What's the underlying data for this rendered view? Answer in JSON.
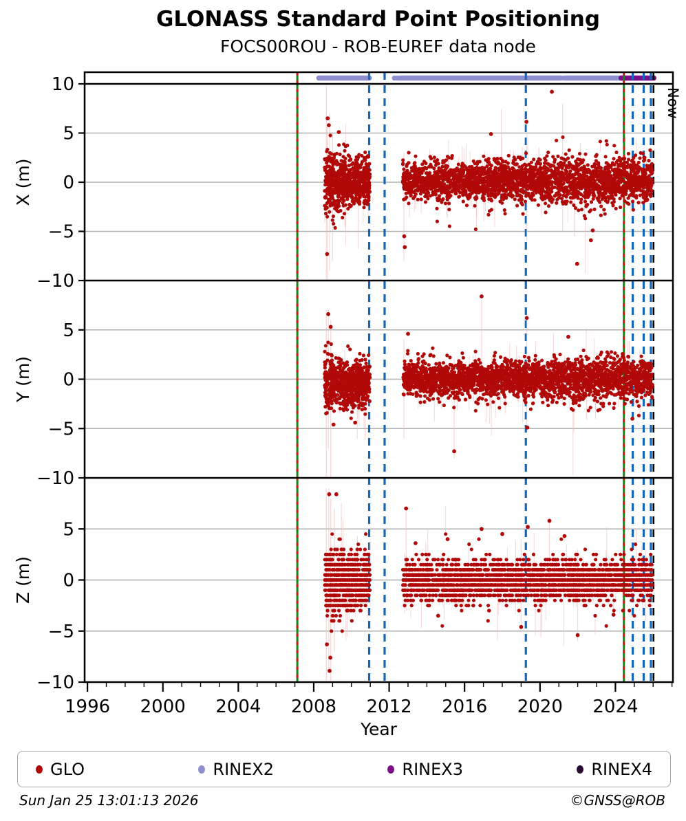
{
  "chart_data": {
    "type": "scatter",
    "title": "GLONASS Standard Point Positioning",
    "subtitle": "FOCS00ROU - ROB-EUREF data node",
    "xlabel": "Year",
    "now_label": "Now",
    "xlim": [
      1995.85,
      2027.05
    ],
    "xticks_major": [
      1996,
      2000,
      2004,
      2008,
      2012,
      2016,
      2020,
      2024
    ],
    "xtick_minor_range": [
      1996,
      2027
    ],
    "ylim": [
      -10,
      10
    ],
    "grid_values": [
      5,
      0,
      -5
    ],
    "grid_on": true,
    "legend_position": "bottom",
    "colors": {
      "glo": "#b10808",
      "stem": "#f0bcbc",
      "rinex2": "#8f8fce",
      "rinex3": "#7c0e87",
      "rinex4": "#2b0a33",
      "blue_event": "#1467b8",
      "green_event": "#0a8c0a",
      "green_event_dash": "#d01818",
      "now_line": "#000000",
      "grid": "#b0b0b0"
    },
    "event_lines": [
      {
        "year": 2007.13,
        "kind": "glonass"
      },
      {
        "year": 2024.45,
        "kind": "glonass"
      },
      {
        "year": 2010.94,
        "kind": "blue"
      },
      {
        "year": 2011.76,
        "kind": "blue"
      },
      {
        "year": 2019.25,
        "kind": "blue"
      },
      {
        "year": 2024.92,
        "kind": "blue"
      },
      {
        "year": 2025.5,
        "kind": "blue"
      },
      {
        "year": 2025.88,
        "kind": "blue"
      },
      {
        "year": 2026.02,
        "kind": "now"
      }
    ],
    "rinex2": {
      "segments": [
        [
          2008.27,
          2010.95
        ],
        [
          2012.55,
          2021.13
        ],
        [
          2021.27,
          2024.38
        ]
      ],
      "dots": [
        2012.28,
        2012.42
      ]
    },
    "rinex3": {
      "segments": [
        [
          2024.3,
          2026.04
        ]
      ],
      "dots": []
    },
    "rinex4": {
      "segments": [],
      "dots": []
    },
    "subplots": [
      {
        "name": "X",
        "ylabel": "X (m)",
        "yticks_labeled": [
          10,
          5,
          0,
          -5,
          -10
        ],
        "clusters": [
          {
            "seed": 11,
            "n": 700,
            "x_range": [
              2008.58,
              2010.98
            ],
            "mean": 0,
            "std_points": [
              [
                0,
                1.7
              ],
              [
                0.25,
                1.3
              ],
              [
                1,
                1.05
              ]
            ],
            "clamp": [
              -4.8,
              5.3
            ],
            "wide_fraction": 0.02,
            "wide_scale": 1.8,
            "wide_clamp": [
              -5.5,
              5.8
            ],
            "stem_fraction": 0.05
          },
          {
            "seed": 12,
            "n": 2600,
            "x_range": [
              2012.72,
              2025.97
            ],
            "mean": 0.15,
            "std_points": [
              [
                0,
                0.95
              ],
              [
                0.55,
                1.05
              ],
              [
                0.78,
                1.35
              ],
              [
                1,
                1.0
              ]
            ],
            "clamp": [
              -4.3,
              4.6
            ],
            "wide_fraction": 0.02,
            "wide_scale": 1.8,
            "wide_clamp": [
              -4.8,
              4.8
            ],
            "stem_fraction": 0.04
          }
        ],
        "outliers": [
          [
            2008.74,
            6.5
          ],
          [
            2008.8,
            5.8
          ],
          [
            2008.71,
            -7.3
          ],
          [
            2009.33,
            5.1
          ],
          [
            2012.8,
            -5.5
          ],
          [
            2012.83,
            -6.6
          ],
          [
            2019.28,
            6.15
          ],
          [
            2020.63,
            9.2
          ],
          [
            2021.97,
            -8.3
          ],
          [
            2017.4,
            4.9
          ],
          [
            2022.7,
            -5.9
          ],
          [
            2022.8,
            -4.9
          ]
        ],
        "tall_stems": [
          [
            2008.67,
            -10,
            10
          ],
          [
            2008.73,
            -10,
            6
          ],
          [
            2008.85,
            -9,
            7
          ],
          [
            2009.0,
            -8,
            5
          ],
          [
            2012.78,
            -8,
            3
          ],
          [
            2019.3,
            -6,
            6.5
          ],
          [
            2021.2,
            -5,
            8
          ],
          [
            2024.4,
            -4,
            4
          ]
        ]
      },
      {
        "name": "Y",
        "ylabel": "Y (m)",
        "yticks_labeled": [
          5,
          0,
          -5,
          -10
        ],
        "clusters": [
          {
            "seed": 21,
            "n": 700,
            "x_range": [
              2008.58,
              2010.98
            ],
            "mean": -0.3,
            "std_points": [
              [
                0,
                1.5
              ],
              [
                0.3,
                1.2
              ],
              [
                1,
                1.0
              ]
            ],
            "clamp": [
              -4.7,
              5.0
            ],
            "wide_fraction": 0.02,
            "wide_scale": 1.8,
            "wide_clamp": [
              -5.2,
              5.4
            ],
            "stem_fraction": 0.05
          },
          {
            "seed": 22,
            "n": 2600,
            "x_range": [
              2012.72,
              2025.97
            ],
            "mean": 0,
            "std_points": [
              [
                0,
                0.85
              ],
              [
                0.55,
                0.9
              ],
              [
                0.8,
                1.15
              ],
              [
                1,
                0.95
              ]
            ],
            "clamp": [
              -3.4,
              4.5
            ],
            "wide_fraction": 0.02,
            "wide_scale": 1.8,
            "wide_clamp": [
              -4.5,
              4.5
            ],
            "stem_fraction": 0.04
          }
        ],
        "outliers": [
          [
            2008.77,
            6.6
          ],
          [
            2008.9,
            5.3
          ],
          [
            2009.05,
            -4.6
          ],
          [
            2010.2,
            -4.4
          ],
          [
            2016.9,
            8.4
          ],
          [
            2015.45,
            -7.3
          ],
          [
            2019.3,
            6.2
          ],
          [
            2019.33,
            -4.9
          ],
          [
            2013.0,
            4.6
          ],
          [
            2021.5,
            4.3
          ],
          [
            2024.9,
            -4.0
          ]
        ],
        "tall_stems": [
          [
            2008.67,
            -10,
            7
          ],
          [
            2008.78,
            -7,
            7
          ],
          [
            2008.9,
            -10,
            6
          ],
          [
            2012.78,
            -6,
            4
          ],
          [
            2015.45,
            -8,
            2
          ],
          [
            2016.9,
            -2,
            8.6
          ],
          [
            2019.3,
            -5,
            6.5
          ],
          [
            2025.3,
            -4,
            3
          ]
        ]
      },
      {
        "name": "Z",
        "ylabel": "Z (m)",
        "yticks_labeled": [
          5,
          0,
          -5,
          -10
        ],
        "clusters": [
          {
            "seed": 31,
            "n": 700,
            "x_range": [
              2008.58,
              2010.98
            ],
            "mean": 0,
            "std_points": [
              [
                0,
                2.0
              ],
              [
                0.3,
                1.5
              ],
              [
                1,
                1.1
              ]
            ],
            "clamp": [
              -5.2,
              6.2
            ],
            "wide_fraction": 0.03,
            "wide_scale": 1.6,
            "wide_clamp": [
              -6.0,
              6.2
            ],
            "quantum": 0.5,
            "stem_fraction": 0.05
          },
          {
            "seed": 32,
            "n": 2600,
            "x_range": [
              2012.72,
              2025.97
            ],
            "mean": 0,
            "std_points": [
              [
                0,
                0.9
              ],
              [
                1,
                0.95
              ]
            ],
            "clamp": [
              -2.6,
              2.6
            ],
            "wide_fraction": 0.05,
            "wide_scale": 2.0,
            "wide_clamp": [
              -4.6,
              4.6
            ],
            "quantum": 0.5,
            "stem_fraction": 0.04
          }
        ],
        "outliers": [
          [
            2008.82,
            8.4
          ],
          [
            2009.2,
            8.4
          ],
          [
            2008.88,
            -7.6
          ],
          [
            2008.84,
            -8.9
          ],
          [
            2008.7,
            -6.3
          ],
          [
            2012.9,
            7.0
          ],
          [
            2015.1,
            4.0
          ],
          [
            2016.9,
            5.0
          ],
          [
            2018.0,
            4.5
          ],
          [
            2019.35,
            5.2
          ],
          [
            2020.5,
            5.8
          ],
          [
            2021.3,
            4.3
          ],
          [
            2022.0,
            -5.4
          ],
          [
            2019.0,
            -4.6
          ],
          [
            2023.9,
            -3.4
          ],
          [
            2013.4,
            3.6
          ],
          [
            2014.6,
            -3.5
          ]
        ],
        "tall_stems": [
          [
            2008.67,
            -10,
            9
          ],
          [
            2008.8,
            -9,
            9
          ],
          [
            2008.9,
            -10,
            8
          ],
          [
            2009.1,
            -7,
            7
          ],
          [
            2012.9,
            -3,
            7.2
          ],
          [
            2019.0,
            -5,
            4
          ],
          [
            2020.5,
            -2,
            6
          ],
          [
            2022.0,
            -6,
            3
          ],
          [
            2025.6,
            -4,
            3
          ]
        ]
      }
    ]
  },
  "legend": {
    "items": [
      {
        "label": "GLO",
        "color": "#b10808"
      },
      {
        "label": "RINEX2",
        "color": "#8f8fce"
      },
      {
        "label": "RINEX3",
        "color": "#7c0e87"
      },
      {
        "label": "RINEX4",
        "color": "#2b0a33"
      }
    ]
  },
  "footer": {
    "generated_at": "Sun Jan 25 13:01:13 2026",
    "credit": "©GNSS@ROB"
  }
}
